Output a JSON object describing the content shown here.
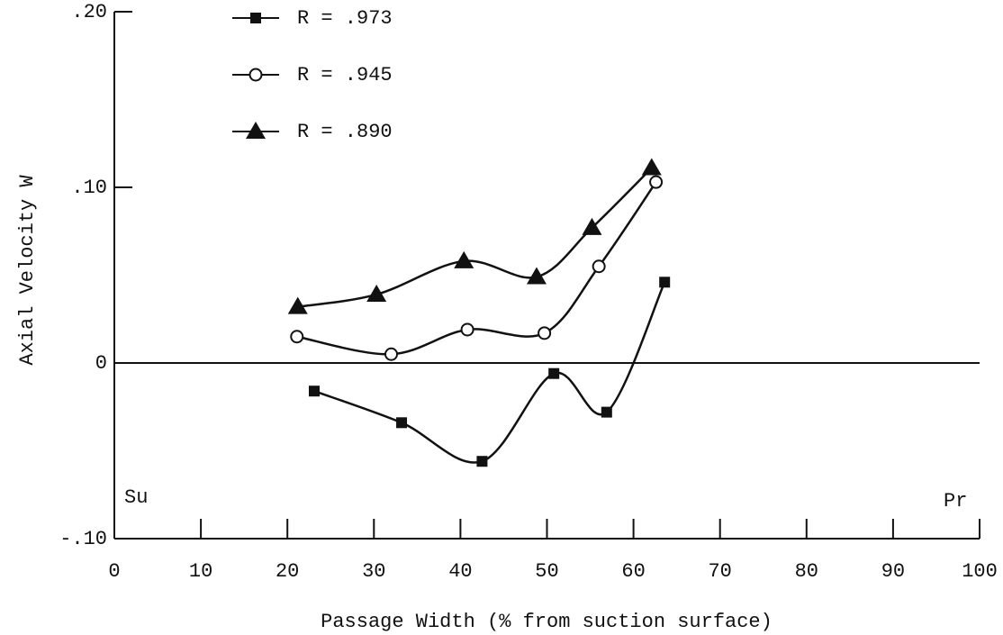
{
  "chart_data": {
    "type": "line",
    "xlabel": "Passage Width (% from suction surface)",
    "ylabel": "Axial Velocity W",
    "annotations": [
      "Su",
      "Pr"
    ],
    "xlim": [
      0,
      100
    ],
    "xticks": [
      0,
      10,
      20,
      30,
      40,
      50,
      60,
      70,
      80,
      90,
      100
    ],
    "ylim": [
      -0.1,
      0.2
    ],
    "yticks": [
      {
        "value": -0.1,
        "label": "-.10"
      },
      0,
      {
        "value": 0.1,
        "label": ".10"
      },
      {
        "value": 0.2,
        "label": ".20"
      }
    ],
    "grid": false,
    "series": [
      {
        "name": "R = .973",
        "color": "#111111",
        "marker": "square",
        "x": [
          23.1,
          33.2,
          42.5,
          50.8,
          56.9,
          63.6
        ],
        "values": [
          -0.016,
          -0.034,
          -0.056,
          -0.006,
          -0.028,
          0.046
        ]
      },
      {
        "name": "R = .945",
        "color": "#111111",
        "marker": "circle",
        "x": [
          21.1,
          32.0,
          40.8,
          49.7,
          56.0,
          62.6
        ],
        "values": [
          0.015,
          0.005,
          0.019,
          0.017,
          0.055,
          0.103
        ]
      },
      {
        "name": "R = .890",
        "color": "#111111",
        "marker": "triangle",
        "x": [
          21.2,
          30.3,
          40.4,
          48.8,
          55.2,
          62.1
        ],
        "values": [
          0.032,
          0.039,
          0.058,
          0.049,
          0.077,
          0.111
        ]
      }
    ]
  }
}
